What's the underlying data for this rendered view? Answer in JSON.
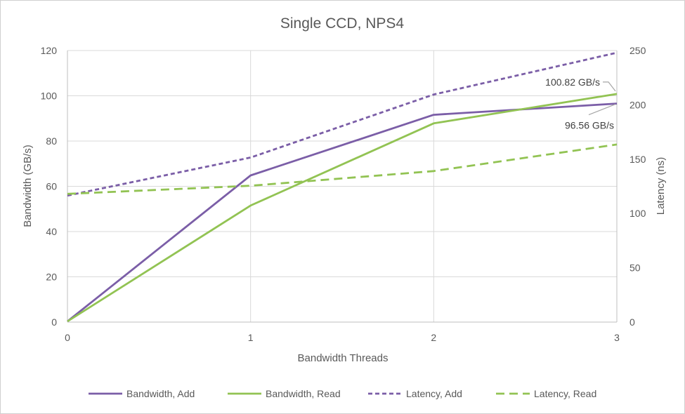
{
  "chart_data": {
    "type": "line",
    "title": "Single CCD, NPS4",
    "xlabel": "Bandwidth Threads",
    "ylabel": "Bandwidth (GB/s)",
    "y2label": "Latency (ns)",
    "x": [
      0,
      1,
      2,
      3
    ],
    "x_ticks": [
      "0",
      "1",
      "2",
      "3"
    ],
    "ylim": [
      0,
      120
    ],
    "y_ticks": [
      "0",
      "20",
      "40",
      "60",
      "80",
      "100",
      "120"
    ],
    "y2lim": [
      0,
      250
    ],
    "y2_ticks": [
      "0",
      "50",
      "100",
      "150",
      "200",
      "250"
    ],
    "grid": true,
    "legend_position": "bottom",
    "colors": {
      "add": "#7b5ea7",
      "read": "#92c353",
      "grid": "#d9d9d9",
      "axis": "#bfbfbf"
    },
    "series": [
      {
        "name": "Bandwidth, Add",
        "axis": "left",
        "dash": "solid",
        "color": "#7b5ea7",
        "values": [
          0.3,
          64.8,
          91.6,
          96.56
        ]
      },
      {
        "name": "Bandwidth, Read",
        "axis": "left",
        "dash": "solid",
        "color": "#92c353",
        "values": [
          0.3,
          51.5,
          87.8,
          100.82
        ]
      },
      {
        "name": "Latency, Add",
        "axis": "right",
        "dash": "short",
        "color": "#7b5ea7",
        "values": [
          116.5,
          151.5,
          209.5,
          248
        ]
      },
      {
        "name": "Latency, Read",
        "axis": "right",
        "dash": "long",
        "color": "#92c353",
        "values": [
          118,
          125.5,
          139,
          163.5
        ]
      }
    ],
    "annotations": [
      {
        "text": "100.82 GB/s",
        "series": "Bandwidth, Read",
        "x": 3,
        "y": 100.82
      },
      {
        "text": "96.56 GB/s",
        "series": "Bandwidth, Add",
        "x": 3,
        "y": 96.56
      }
    ]
  }
}
